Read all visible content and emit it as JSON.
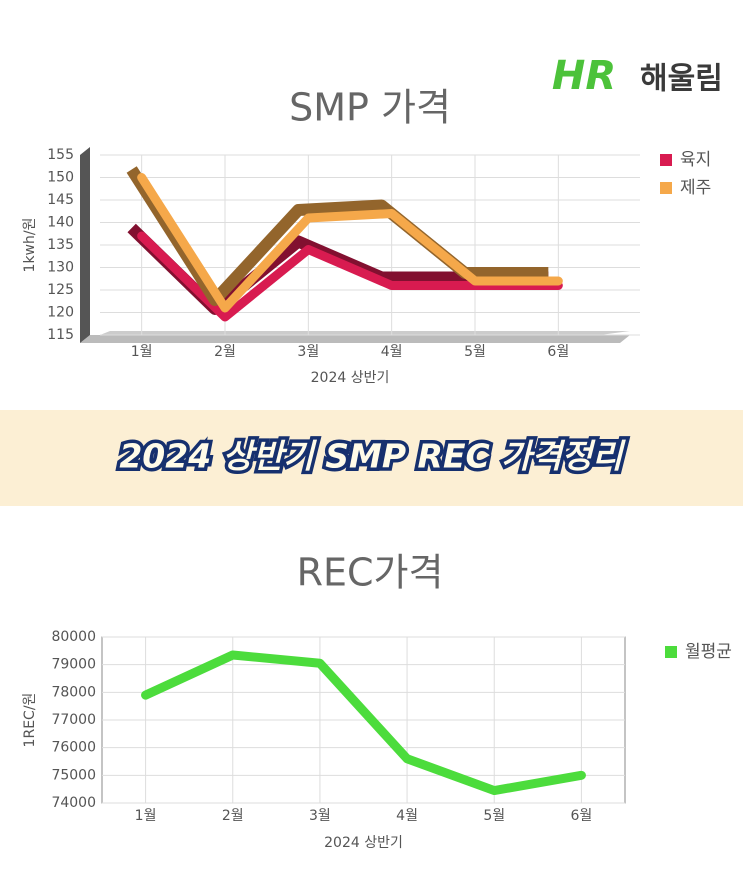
{
  "banner": {
    "title": "2024 상반기 SMP REC 가격정리"
  },
  "logo": {
    "mark": "HR",
    "name": "해울림"
  },
  "chart_data": [
    {
      "type": "line",
      "title": "SMP 가격",
      "x_label": "2024 상반기",
      "y_label": "1kwh/원",
      "categories": [
        "1월",
        "2월",
        "3월",
        "4월",
        "5월",
        "6월"
      ],
      "series": [
        {
          "name": "육지",
          "color": "#d81b50",
          "values": [
            137,
            119,
            134,
            126,
            126,
            126
          ]
        },
        {
          "name": "제주",
          "color": "#f5a84a",
          "values": [
            150,
            121,
            141,
            142,
            127,
            127
          ]
        }
      ],
      "ylim": [
        115,
        155
      ],
      "yticks": [
        115,
        120,
        125,
        130,
        135,
        140,
        145,
        150,
        155
      ],
      "grid": true,
      "three_d": true,
      "legend": "right"
    },
    {
      "type": "line",
      "title": "REC가격",
      "x_label": "2024 상반기",
      "y_label": "1REC/원",
      "categories": [
        "1월",
        "2월",
        "3월",
        "4월",
        "5월",
        "6월"
      ],
      "series": [
        {
          "name": "월평균",
          "color": "#4cdc3c",
          "values": [
            77900,
            79350,
            79050,
            75600,
            74450,
            75000
          ]
        }
      ],
      "ylim": [
        74000,
        80000
      ],
      "yticks": [
        74000,
        75000,
        76000,
        77000,
        78000,
        79000,
        80000
      ],
      "grid": true,
      "three_d": false,
      "legend": "right"
    }
  ]
}
